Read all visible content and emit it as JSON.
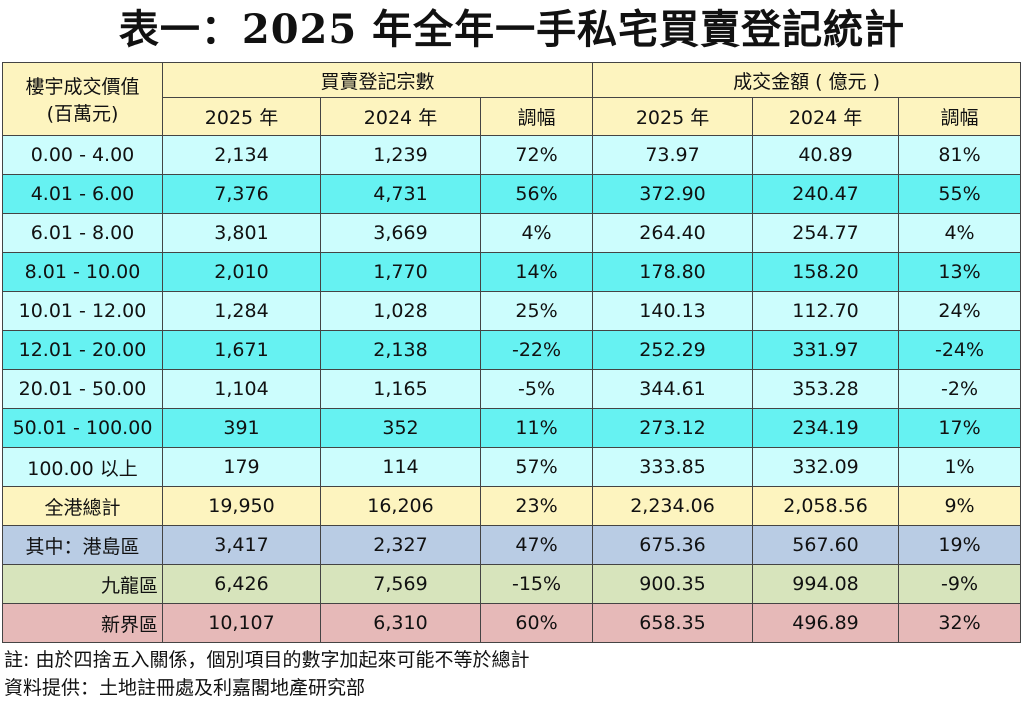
{
  "title": "表一：2025 年全年一手私宅買賣登記統計",
  "header": {
    "price_col": [
      "樓宇成交價值",
      "(百萬元)"
    ],
    "group1": "買賣登記宗數",
    "group2": "成交金額 ( 億元 )",
    "sub": [
      "2025 年",
      "2024 年",
      "調幅",
      "2025 年",
      "2024 年",
      "調幅"
    ]
  },
  "rows": [
    {
      "band": "0.00 - 4.00",
      "v": [
        "2,134",
        "1,239",
        "72%",
        "73.97",
        "40.89",
        "81%"
      ]
    },
    {
      "band": "4.01 - 6.00",
      "v": [
        "7,376",
        "4,731",
        "56%",
        "372.90",
        "240.47",
        "55%"
      ]
    },
    {
      "band": "6.01 - 8.00",
      "v": [
        "3,801",
        "3,669",
        "4%",
        "264.40",
        "254.77",
        "4%"
      ]
    },
    {
      "band": "8.01 - 10.00",
      "v": [
        "2,010",
        "1,770",
        "14%",
        "178.80",
        "158.20",
        "13%"
      ]
    },
    {
      "band": "10.01 - 12.00",
      "v": [
        "1,284",
        "1,028",
        "25%",
        "140.13",
        "112.70",
        "24%"
      ]
    },
    {
      "band": "12.01 - 20.00",
      "v": [
        "1,671",
        "2,138",
        "-22%",
        "252.29",
        "331.97",
        "-24%"
      ]
    },
    {
      "band": "20.01 - 50.00",
      "v": [
        "1,104",
        "1,165",
        "-5%",
        "344.61",
        "353.28",
        "-2%"
      ]
    },
    {
      "band": "50.01 - 100.00",
      "v": [
        "391",
        "352",
        "11%",
        "273.12",
        "234.19",
        "17%"
      ]
    },
    {
      "band": "100.00  以上",
      "v": [
        "179",
        "114",
        "57%",
        "333.85",
        "332.09",
        "1%"
      ]
    }
  ],
  "total": {
    "band": "全港總計",
    "v": [
      "19,950",
      "16,206",
      "23%",
      "2,234.06",
      "2,058.56",
      "9%"
    ]
  },
  "regions": [
    {
      "band": "其中：港島區",
      "v": [
        "3,417",
        "2,327",
        "47%",
        "675.36",
        "567.60",
        "19%"
      ]
    },
    {
      "band": "九龍區",
      "v": [
        "6,426",
        "7,569",
        "-15%",
        "900.35",
        "994.08",
        "-9%"
      ]
    },
    {
      "band": "新界區",
      "v": [
        "10,107",
        "6,310",
        "60%",
        "658.35",
        "496.89",
        "32%"
      ]
    }
  ],
  "notes": [
    "註: 由於四捨五入關係，個別項目的數字加起來可能不等於總計",
    "資料提供：土地註冊處及利嘉閣地產研究部"
  ],
  "colors": {
    "header": "#fdf4bf",
    "row_light": "#ccfdfd",
    "row_cyan": "#66f2f2",
    "hk": "#b9cce4",
    "kowloon": "#d7e4bc",
    "nt": "#e6b9b8"
  }
}
